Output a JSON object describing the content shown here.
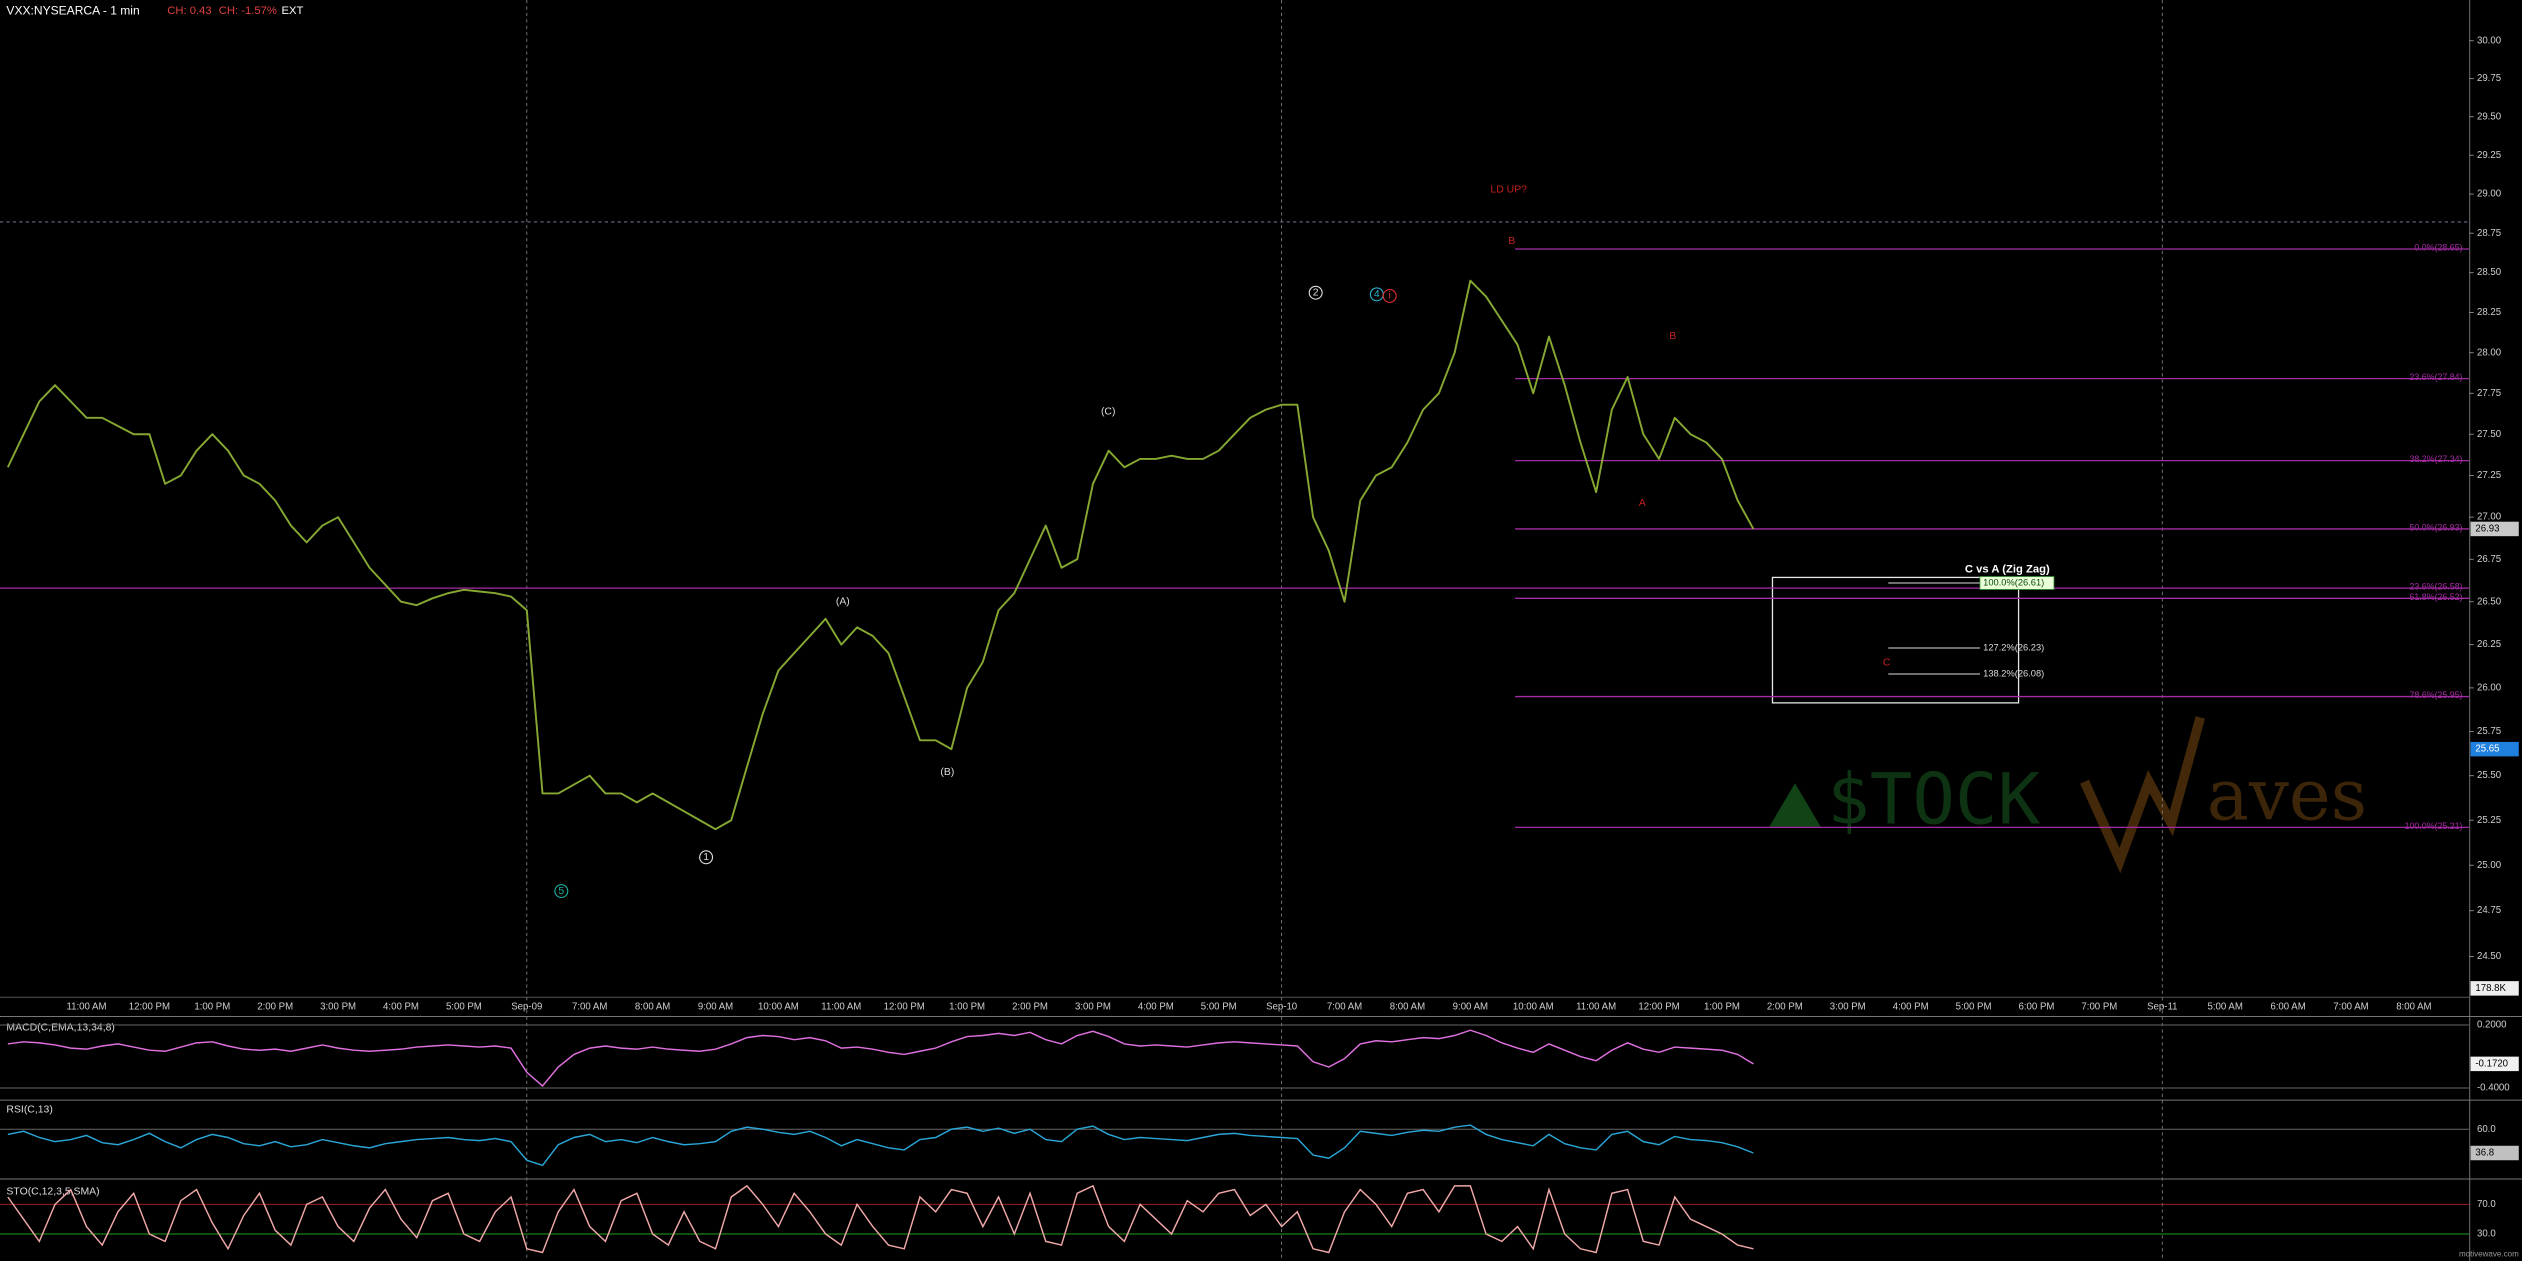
{
  "chart_data": {
    "type": "line",
    "title": "VXX:NYSEARCA - 1 min",
    "change": "CH: 0.43",
    "change_pct": "CH: -1.57%",
    "session": "EXT",
    "log": true,
    "ylim": [
      24.35,
      30.25
    ],
    "yticks": [
      {
        "value": 24.5,
        "label": "24.50"
      },
      24.75,
      {
        "value": 25,
        "label": "25.00"
      },
      25.25,
      {
        "value": 25.5,
        "label": "25.50"
      },
      25.75,
      {
        "value": 26,
        "label": "26.00"
      },
      26.25,
      {
        "value": 26.5,
        "label": "26.50"
      },
      26.75,
      {
        "value": 27,
        "label": "27.00"
      },
      27.25,
      {
        "value": 27.5,
        "label": "27.50"
      },
      27.75,
      {
        "value": 28,
        "label": "28.00"
      },
      28.25,
      {
        "value": 28.5,
        "label": "28.50"
      },
      28.75,
      {
        "value": 29,
        "label": "29.00"
      },
      29.25,
      {
        "value": 29.5,
        "label": "29.50"
      },
      29.75,
      {
        "value": 30,
        "label": "30.00"
      }
    ],
    "categories": [
      null,
      null,
      null,
      null,
      null,
      "11:00 AM",
      null,
      null,
      null,
      "12:00 PM",
      null,
      null,
      null,
      "1:00 PM",
      null,
      null,
      null,
      "2:00 PM",
      null,
      null,
      null,
      "3:00 PM",
      null,
      null,
      null,
      "4:00 PM",
      null,
      null,
      null,
      "5:00 PM",
      null,
      null,
      null,
      "Sep-09",
      null,
      null,
      null,
      "7:00 AM",
      null,
      null,
      null,
      "8:00 AM",
      null,
      null,
      null,
      "9:00 AM",
      null,
      null,
      null,
      "10:00 AM",
      null,
      null,
      null,
      "11:00 AM",
      null,
      null,
      null,
      "12:00 PM",
      null,
      null,
      null,
      "1:00 PM",
      null,
      null,
      null,
      "2:00 PM",
      null,
      null,
      null,
      "3:00 PM",
      null,
      null,
      null,
      "4:00 PM",
      null,
      null,
      null,
      "5:00 PM",
      null,
      null,
      null,
      "Sep-10",
      null,
      null,
      null,
      "7:00 AM",
      null,
      null,
      null,
      "8:00 AM",
      null,
      null,
      null,
      "9:00 AM",
      null,
      null,
      null,
      "10:00 AM",
      null,
      null,
      null,
      "11:00 AM",
      null,
      null,
      null,
      "12:00 PM",
      null,
      null,
      null,
      "1:00 PM",
      null,
      null,
      null,
      "2:00 PM",
      null,
      null,
      null,
      "3:00 PM",
      null,
      null,
      null,
      "4:00 PM",
      null,
      null,
      null,
      "5:00 PM",
      null,
      null,
      null,
      "6:00 PM",
      null,
      null,
      null,
      "7:00 PM",
      null,
      null,
      null,
      "Sep-11",
      null,
      null,
      null,
      "5:00 AM",
      null,
      null,
      null,
      "6:00 AM",
      null,
      null,
      null,
      "7:00 AM",
      null,
      null,
      null,
      "8:00 AM",
      null,
      null,
      null
    ],
    "series": [
      {
        "name": "VXX",
        "color": "#86a833",
        "values": [
          27.3,
          27.5,
          27.7,
          27.8,
          27.7,
          27.6,
          27.6,
          27.55,
          27.5,
          27.5,
          27.2,
          27.25,
          27.4,
          27.5,
          27.4,
          27.25,
          27.2,
          27.1,
          26.95,
          26.85,
          26.95,
          27.0,
          26.85,
          26.7,
          26.6,
          26.5,
          26.48,
          26.52,
          26.55,
          26.57,
          26.56,
          26.55,
          26.53,
          26.45,
          25.4,
          25.4,
          25.45,
          25.5,
          25.4,
          25.4,
          25.35,
          25.4,
          25.35,
          25.3,
          25.25,
          25.2,
          25.25,
          25.55,
          25.85,
          26.1,
          26.2,
          26.3,
          26.4,
          26.25,
          26.35,
          26.3,
          26.2,
          25.95,
          25.7,
          25.7,
          25.65,
          26.0,
          26.15,
          26.45,
          26.55,
          26.75,
          26.95,
          26.7,
          26.75,
          27.2,
          27.4,
          27.3,
          27.35,
          27.35,
          27.37,
          27.35,
          27.35,
          27.4,
          27.5,
          27.6,
          27.65,
          27.68,
          27.68,
          27.0,
          26.8,
          26.5,
          27.1,
          27.25,
          27.3,
          27.45,
          27.65,
          27.75,
          28.0,
          28.45,
          28.35,
          28.2,
          28.05,
          27.75,
          28.1,
          27.8,
          27.45,
          27.15,
          27.65,
          27.85,
          27.5,
          27.35,
          27.6,
          27.5,
          27.45,
          27.35,
          27.1,
          26.93,
          null,
          null,
          null,
          null,
          null,
          null,
          null,
          null,
          null,
          null,
          null,
          null,
          null,
          null,
          null,
          null,
          null,
          null,
          null,
          null,
          null,
          null,
          null,
          null,
          null,
          null,
          null,
          null,
          null,
          null,
          null,
          null,
          null,
          null,
          null,
          null,
          null,
          null,
          null,
          null,
          null,
          null,
          null,
          null,
          null
        ]
      }
    ],
    "fib_color": "#a52ca5",
    "fib_levels": [
      {
        "value": 28.65,
        "label": "0.0%(28.65)"
      },
      {
        "value": 27.84,
        "label": "23.6%(27.84)"
      },
      {
        "value": 27.34,
        "label": "38.2%(27.34)"
      },
      {
        "value": 26.93,
        "label": "50.0%(26.93)"
      },
      {
        "value": 26.58,
        "label": "23.6%(26.58)"
      },
      {
        "value": 26.52,
        "label": "61.8%(26.52)"
      },
      {
        "value": 25.95,
        "label": "78.6%(25.95)"
      },
      {
        "value": 25.21,
        "label": "100.0%(25.21)"
      }
    ],
    "zigzag": {
      "title": "C vs A (Zig Zag)",
      "levels": [
        {
          "value": 26.61,
          "label": "100.0%(26.61)"
        },
        {
          "value": 26.23,
          "label": "127.2%(26.23)"
        },
        {
          "value": 26.08,
          "label": "138.2%(26.08)"
        }
      ]
    },
    "annotations": [
      {
        "text": "LD UP?",
        "color": "#c82020"
      },
      {
        "text": "B",
        "color": "#c82020"
      },
      {
        "text": "B",
        "color": "#c82020"
      },
      {
        "text": "A",
        "color": "#c82020"
      },
      {
        "text": "C",
        "color": "#c82020"
      },
      {
        "text": "(A)",
        "color": "#dddddd"
      },
      {
        "text": "(B)",
        "color": "#dddddd"
      },
      {
        "text": "(C)",
        "color": "#dddddd"
      },
      {
        "text": "1",
        "color": "#dddddd"
      },
      {
        "text": "2",
        "color": "#dddddd"
      },
      {
        "text": "4",
        "color": "#2ab0d0"
      },
      {
        "text": "5",
        "color": "#20b0a0"
      },
      {
        "text": "i",
        "color": "#e03030"
      }
    ],
    "price_badges": [
      {
        "value": 26.93,
        "label": "26.93",
        "color": "#c8c8c8"
      },
      {
        "value": 25.65,
        "label": "25.65",
        "color": "#2080e0"
      }
    ],
    "volume_badge": "178.8K",
    "indicators": [
      {
        "title": "MACD(C,EMA,13,34,8)",
        "color": "#e070e0",
        "ylim": [
          -0.5,
          0.25
        ],
        "yticks": [
          {
            "value": 0.2,
            "label": "0.2000"
          },
          {
            "value": -0.4,
            "label": "-0.4000"
          }
        ],
        "last_label": "-0.1720",
        "values": [
          0.02,
          0.04,
          0.03,
          0.01,
          -0.02,
          -0.03,
          0.0,
          0.02,
          -0.01,
          -0.04,
          -0.05,
          -0.01,
          0.03,
          0.04,
          0.0,
          -0.03,
          -0.04,
          -0.03,
          -0.05,
          -0.02,
          0.01,
          -0.02,
          -0.04,
          -0.05,
          -0.04,
          -0.03,
          -0.01,
          0.0,
          0.01,
          0.0,
          -0.01,
          0.0,
          -0.02,
          -0.25,
          -0.38,
          -0.2,
          -0.08,
          -0.02,
          0.0,
          -0.02,
          -0.03,
          -0.01,
          -0.03,
          -0.04,
          -0.05,
          -0.03,
          0.02,
          0.08,
          0.1,
          0.09,
          0.06,
          0.08,
          0.05,
          -0.02,
          -0.01,
          -0.03,
          -0.06,
          -0.08,
          -0.05,
          -0.02,
          0.04,
          0.09,
          0.1,
          0.12,
          0.1,
          0.13,
          0.06,
          0.02,
          0.1,
          0.14,
          0.09,
          0.02,
          0.0,
          0.01,
          0.0,
          -0.01,
          0.01,
          0.03,
          0.04,
          0.03,
          0.02,
          0.01,
          0.0,
          -0.15,
          -0.2,
          -0.12,
          0.02,
          0.05,
          0.04,
          0.06,
          0.08,
          0.07,
          0.1,
          0.15,
          0.1,
          0.03,
          -0.02,
          -0.06,
          0.02,
          -0.04,
          -0.1,
          -0.14,
          -0.04,
          0.03,
          -0.03,
          -0.06,
          -0.01,
          -0.02,
          -0.03,
          -0.04,
          -0.08,
          -0.17,
          null,
          null,
          null,
          null,
          null,
          null,
          null,
          null,
          null,
          null,
          null,
          null,
          null,
          null,
          null,
          null,
          null,
          null,
          null,
          null,
          null,
          null,
          null,
          null,
          null,
          null,
          null,
          null,
          null,
          null,
          null,
          null,
          null,
          null,
          null,
          null,
          null,
          null,
          null,
          null,
          null,
          null,
          null,
          null,
          null
        ]
      },
      {
        "title": "RSI(C,13)",
        "color": "#2aa6d6",
        "ylim": [
          15,
          85
        ],
        "yticks": [
          {
            "value": 60,
            "label": "60.0"
          }
        ],
        "last_label": "36.8",
        "values": [
          55,
          58,
          52,
          48,
          50,
          54,
          47,
          45,
          50,
          56,
          48,
          42,
          50,
          55,
          52,
          46,
          44,
          48,
          43,
          45,
          50,
          47,
          44,
          42,
          46,
          48,
          50,
          51,
          52,
          50,
          49,
          51,
          48,
          30,
          25,
          45,
          52,
          55,
          48,
          50,
          47,
          52,
          48,
          45,
          46,
          48,
          58,
          62,
          60,
          57,
          55,
          58,
          52,
          44,
          50,
          46,
          42,
          40,
          50,
          52,
          60,
          62,
          58,
          61,
          56,
          60,
          50,
          48,
          60,
          63,
          55,
          50,
          52,
          51,
          50,
          49,
          52,
          55,
          56,
          54,
          53,
          52,
          51,
          35,
          32,
          42,
          58,
          56,
          54,
          57,
          59,
          58,
          62,
          64,
          55,
          50,
          47,
          44,
          55,
          46,
          42,
          40,
          55,
          58,
          48,
          45,
          53,
          50,
          49,
          47,
          43,
          37,
          null,
          null,
          null,
          null,
          null,
          null,
          null,
          null,
          null,
          null,
          null,
          null,
          null,
          null,
          null,
          null,
          null,
          null,
          null,
          null,
          null,
          null,
          null,
          null,
          null,
          null,
          null,
          null,
          null,
          null,
          null,
          null,
          null,
          null,
          null,
          null,
          null,
          null,
          null,
          null,
          null,
          null,
          null,
          null,
          null
        ]
      },
      {
        "title": "STO(C,12,3,5,SMA)",
        "color": "#f0a8a8",
        "ylim": [
          0,
          100
        ],
        "yticks": [
          {
            "value": 70,
            "label": "70.0"
          },
          {
            "value": 30,
            "label": "30.0"
          }
        ],
        "values": [
          80,
          50,
          20,
          70,
          90,
          40,
          15,
          60,
          85,
          30,
          20,
          75,
          90,
          45,
          10,
          55,
          85,
          35,
          15,
          70,
          80,
          40,
          20,
          65,
          90,
          50,
          25,
          75,
          85,
          30,
          20,
          60,
          80,
          10,
          5,
          60,
          90,
          40,
          20,
          75,
          85,
          30,
          15,
          60,
          20,
          10,
          80,
          95,
          70,
          40,
          85,
          60,
          30,
          15,
          70,
          40,
          15,
          10,
          80,
          60,
          90,
          85,
          40,
          80,
          30,
          85,
          20,
          15,
          85,
          95,
          40,
          20,
          70,
          50,
          30,
          75,
          60,
          85,
          90,
          55,
          70,
          40,
          60,
          10,
          5,
          60,
          90,
          70,
          40,
          85,
          90,
          60,
          95,
          95,
          30,
          20,
          40,
          10,
          90,
          30,
          10,
          5,
          85,
          90,
          20,
          15,
          80,
          50,
          40,
          30,
          15,
          10,
          null,
          null,
          null,
          null,
          null,
          null,
          null,
          null,
          null,
          null,
          null,
          null,
          null,
          null,
          null,
          null,
          null,
          null,
          null,
          null,
          null,
          null,
          null,
          null,
          null,
          null,
          null,
          null,
          null,
          null,
          null,
          null,
          null,
          null,
          null,
          null,
          null,
          null,
          null,
          null,
          null,
          null,
          null,
          null,
          null
        ]
      }
    ],
    "watermark": {
      "left": "$TOCK",
      "right": "aves"
    },
    "source": "motivewave.com"
  }
}
